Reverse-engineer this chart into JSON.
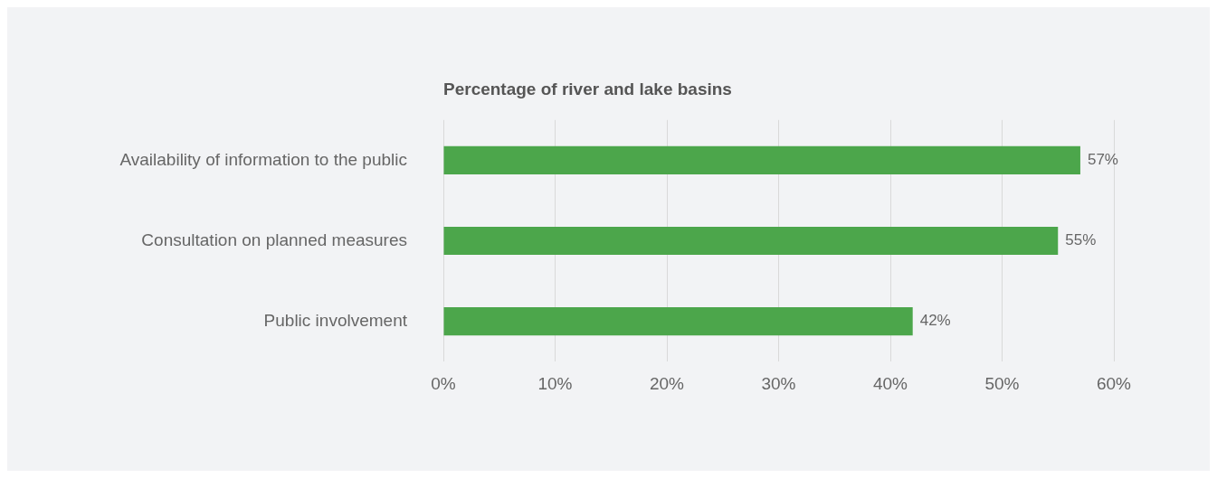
{
  "chart_data": {
    "type": "bar",
    "orientation": "horizontal",
    "title": "Percentage of river and lake basins",
    "categories": [
      "Availability of information to the public",
      "Consultation on planned measures",
      "Public involvement"
    ],
    "values": [
      57,
      55,
      42
    ],
    "color": "#4ca64b",
    "value_labels": [
      "57%",
      "55%",
      "42%"
    ],
    "xlim": [
      0,
      60
    ],
    "xticks": [
      {
        "value": 0,
        "label": "0%"
      },
      {
        "value": 10,
        "label": "10%"
      },
      {
        "value": 20,
        "label": "20%"
      },
      {
        "value": 30,
        "label": "30%"
      },
      {
        "value": 40,
        "label": "40%"
      },
      {
        "value": 50,
        "label": "50%"
      },
      {
        "value": 60,
        "label": "60%"
      }
    ],
    "grid": "x",
    "legend": false
  }
}
